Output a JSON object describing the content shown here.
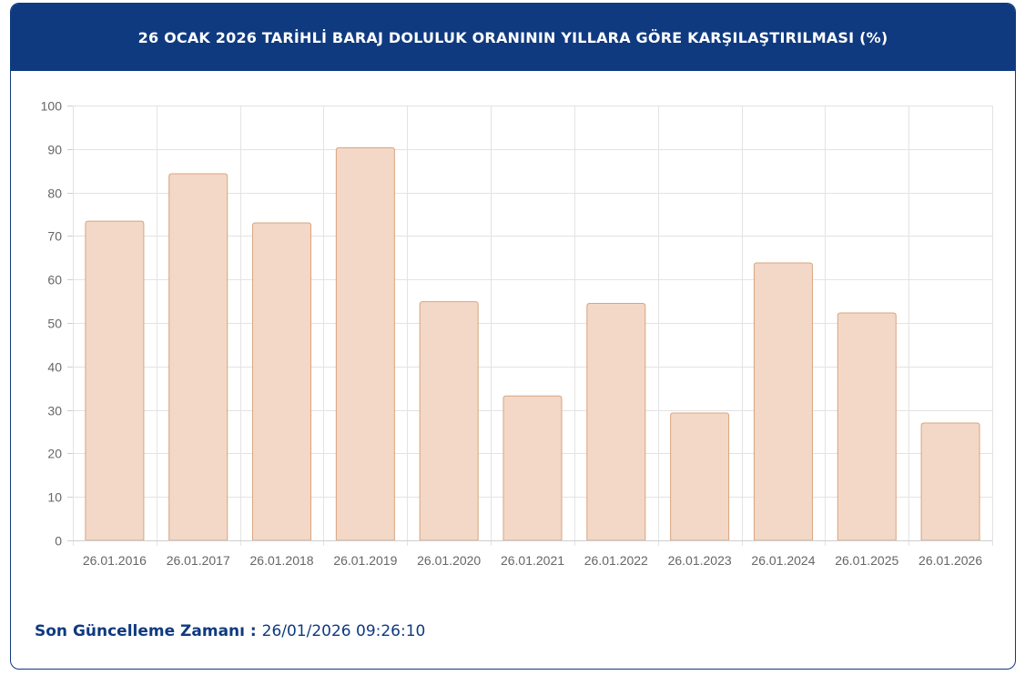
{
  "header": {
    "title": "26 OCAK 2026 TARİHLİ BARAJ DOLULUK ORANININ YILLARA GÖRE KARŞILAŞTIRILMASI (%)"
  },
  "footer": {
    "label": "Son Güncelleme Zamanı",
    "separator": " : ",
    "value": "26/01/2026 09:26:10"
  },
  "colors": {
    "header_bg": "#0f3a80",
    "bar_fill": "#f3d8c7",
    "bar_stroke": "#d8a47e"
  },
  "chart_data": {
    "type": "bar",
    "title": "26 OCAK 2026 TARİHLİ BARAJ DOLULUK ORANININ YILLARA GÖRE KARŞILAŞTIRILMASI (%)",
    "categories": [
      "26.01.2016",
      "26.01.2017",
      "26.01.2018",
      "26.01.2019",
      "26.01.2020",
      "26.01.2021",
      "26.01.2022",
      "26.01.2023",
      "26.01.2024",
      "26.01.2025",
      "26.01.2026"
    ],
    "values": [
      73.4,
      84.3,
      73.0,
      90.3,
      54.9,
      33.2,
      54.5,
      29.3,
      63.8,
      52.3,
      27.0
    ],
    "xlabel": "",
    "ylabel": "",
    "ylim": [
      0,
      100
    ],
    "yticks": [
      0,
      10,
      20,
      30,
      40,
      50,
      60,
      70,
      80,
      90,
      100
    ],
    "grid": true,
    "legend": "none"
  }
}
